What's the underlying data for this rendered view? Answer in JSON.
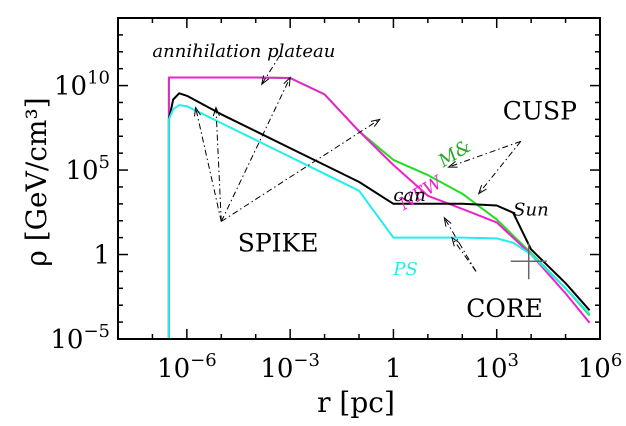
{
  "chart_data": {
    "type": "line",
    "xscale": "log",
    "yscale": "log",
    "xlim": [
      1e-08,
      1000000.0
    ],
    "ylim": [
      1e-05,
      100000000000000.0
    ],
    "xlabel": "r [pc]",
    "ylabel": "ρ [GeV/cm³]",
    "x_ticks": [
      {
        "value": 1e-06,
        "base": "10",
        "exp": "−6"
      },
      {
        "value": 0.001,
        "base": "10",
        "exp": "−3"
      },
      {
        "value": 1,
        "base": "1",
        "exp": ""
      },
      {
        "value": 1000.0,
        "base": "10",
        "exp": "3"
      },
      {
        "value": 1000000.0,
        "base": "10",
        "exp": "6"
      }
    ],
    "y_ticks": [
      {
        "value": 1e-05,
        "base": "10",
        "exp": "−5"
      },
      {
        "value": 1,
        "base": "1",
        "exp": ""
      },
      {
        "value": 100000.0,
        "base": "10",
        "exp": "5"
      },
      {
        "value": 10000000000.0,
        "base": "10",
        "exp": "10"
      }
    ],
    "series": [
      {
        "name": "M&",
        "color": "#22dd22",
        "points": [
          [
            3e-07,
            1e-05
          ],
          [
            3e-07,
            30000000000.0
          ],
          [
            0.0001,
            30000000000.0
          ],
          [
            0.001,
            28000000000.0
          ],
          [
            0.01,
            3000000000.0
          ],
          [
            0.1,
            20000000.0
          ],
          [
            1,
            400000.0
          ],
          [
            10,
            50000.0
          ],
          [
            100,
            4000.0
          ],
          [
            1000.0,
            120
          ],
          [
            10000.0,
            1.2
          ],
          [
            100000.0,
            0.01
          ],
          [
            500000.0,
            0.00025
          ]
        ]
      },
      {
        "name": "NFW",
        "color": "#ee22cc",
        "points": [
          [
            3e-07,
            1e-05
          ],
          [
            3e-07,
            30000000000.0
          ],
          [
            0.0001,
            30000000000.0
          ],
          [
            0.001,
            28000000000.0
          ],
          [
            0.01,
            3000000000.0
          ],
          [
            0.1,
            20000000.0
          ],
          [
            1,
            200000.0
          ],
          [
            10,
            3000.0
          ],
          [
            100,
            500
          ],
          [
            1000.0,
            80
          ],
          [
            10000.0,
            1
          ],
          [
            100000.0,
            0.005
          ],
          [
            500000.0,
            9e-05
          ]
        ]
      },
      {
        "name": "can",
        "color": "#000000",
        "points": [
          [
            3e-07,
            1e-05
          ],
          [
            3e-07,
            100000000.0
          ],
          [
            4e-07,
            1500000000.0
          ],
          [
            6e-07,
            3500000000.0
          ],
          [
            1e-06,
            2500000000.0
          ],
          [
            1e-05,
            200000000.0
          ],
          [
            0.0001,
            20000000.0
          ],
          [
            0.001,
            2000000.0
          ],
          [
            0.01,
            200000.0
          ],
          [
            0.1,
            20000.0
          ],
          [
            1,
            1000.0
          ],
          [
            10,
            1000.0
          ],
          [
            100,
            1000.0
          ],
          [
            1000.0,
            800
          ],
          [
            3000.0,
            300
          ],
          [
            10000.0,
            2
          ],
          [
            100000.0,
            0.02
          ],
          [
            500000.0,
            0.0005
          ]
        ]
      },
      {
        "name": "PS",
        "color": "#22eeee",
        "points": [
          [
            3e-07,
            1e-05
          ],
          [
            3e-07,
            100000000.0
          ],
          [
            4e-07,
            400000000.0
          ],
          [
            6e-07,
            700000000.0
          ],
          [
            1e-06,
            600000000.0
          ],
          [
            1e-05,
            60000000.0
          ],
          [
            0.0001,
            6000000.0
          ],
          [
            0.001,
            600000.0
          ],
          [
            0.01,
            60000.0
          ],
          [
            0.1,
            6000.0
          ],
          [
            1,
            10.0
          ],
          [
            10,
            10.0
          ],
          [
            100,
            10.0
          ],
          [
            1000.0,
            9
          ],
          [
            3000.0,
            5
          ],
          [
            10000.0,
            1
          ],
          [
            100000.0,
            0.01
          ],
          [
            500000.0,
            0.0003
          ]
        ]
      }
    ],
    "annotations": [
      {
        "id": "plateau",
        "text": "annihilation plateau",
        "x": 1e-07,
        "y": 500000000000.0,
        "style": "italic",
        "color": "#000000",
        "arrows": [
          [
            0.00015,
            12000000000.0
          ]
        ],
        "from": [
          0.0005,
          600000000000.0
        ]
      },
      {
        "id": "spike",
        "text": "SPIKE",
        "x": 3e-05,
        "y": 1.5,
        "style": "upright",
        "color": "#000000",
        "from": [
          1e-05,
          90.0
        ],
        "arrows": [
          [
            1.8e-06,
            500000000.0
          ],
          [
            7e-06,
            500000000.0
          ],
          [
            0.001,
            30000000000.0
          ],
          [
            0.4,
            100000000.0
          ]
        ]
      },
      {
        "id": "cusp",
        "text": "CUSP",
        "x": 1500.0,
        "y": 100000000.0,
        "style": "upright",
        "color": "#000000",
        "from": [
          5000.0,
          5000000.0
        ],
        "arrows": [
          [
            40,
            150000.0
          ],
          [
            300,
            4000.0
          ]
        ]
      },
      {
        "id": "core",
        "text": "CORE",
        "x": 130.0,
        "y": 0.0002,
        "style": "upright",
        "color": "#000000",
        "from": [
          250,
          0.1
        ],
        "arrows": [
          [
            30,
            150.0
          ],
          [
            50,
            10.0
          ]
        ]
      },
      {
        "id": "mn",
        "text": "M&",
        "x": 28,
        "y": 140000.0,
        "style": "italic",
        "color": "#22aa22",
        "angle": -32
      },
      {
        "id": "nfw",
        "text": "NFW",
        "x": 2,
        "y": 400.0,
        "style": "italic",
        "color": "#ee22cc",
        "angle": -32
      },
      {
        "id": "can",
        "text": "can",
        "x": 1,
        "y": 1500.0,
        "style": "italic",
        "color": "#000000"
      },
      {
        "id": "ps",
        "text": "PS",
        "x": 1,
        "y": 0.06,
        "style": "italic",
        "color": "#22eeee"
      },
      {
        "id": "sun",
        "text": "Sun",
        "x": 3000.0,
        "y": 200.0,
        "style": "italic",
        "color": "#000000"
      }
    ],
    "sun_marker": {
      "x": 8500.0,
      "y": 0.4
    },
    "grid": false,
    "legend": "none"
  }
}
